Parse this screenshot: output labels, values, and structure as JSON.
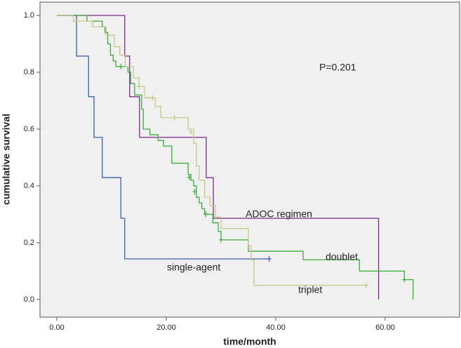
{
  "chart_data": {
    "type": "km",
    "xlabel": "time/month",
    "ylabel": "cumulative survival",
    "annotation": "P=0.201",
    "xlim": [
      -3.08,
      73.6
    ],
    "ylim": [
      -0.062,
      1.047
    ],
    "xticks": [
      {
        "value": 0,
        "label": "0.00"
      },
      {
        "value": 20,
        "label": "20.00"
      },
      {
        "value": 40,
        "label": "40.00"
      },
      {
        "value": 60,
        "label": "60.00"
      }
    ],
    "yticks": [
      {
        "value": 0,
        "label": "0.0"
      },
      {
        "value": 0.2,
        "label": "0.2"
      },
      {
        "value": 0.4,
        "label": "0.4"
      },
      {
        "value": 0.6,
        "label": "0.6"
      },
      {
        "value": 0.8,
        "label": "0.8"
      },
      {
        "value": 1,
        "label": "1.0"
      }
    ],
    "series": [
      {
        "name": "single-agent",
        "color": "#3a5fad",
        "x": [
          0,
          3.6,
          5.8,
          6.8,
          8.3,
          11.7,
          12.4,
          38.8
        ],
        "values": [
          1,
          0.857,
          0.714,
          0.571,
          0.429,
          0.286,
          0.143,
          0.143
        ],
        "censor_x": [
          38.8
        ],
        "censor_y": [
          0.143
        ]
      },
      {
        "name": "ADOC regimen",
        "color": "#7b2a8a",
        "x": [
          0,
          12.4,
          13.3,
          15.1,
          27.3,
          28.6,
          58.8
        ],
        "values": [
          1,
          0.857,
          0.714,
          0.571,
          0.429,
          0.286,
          0
        ],
        "censor_x": [],
        "censor_y": []
      },
      {
        "name": "doublet",
        "color": "#3aab3a",
        "x": [
          0,
          5.5,
          8.3,
          8.8,
          9.3,
          9.8,
          10.3,
          10.8,
          13.0,
          13.5,
          14.2,
          15.5,
          15.8,
          17.0,
          18.5,
          19.5,
          21,
          24,
          24.5,
          25,
          25.5,
          26,
          26.5,
          27,
          28.5,
          29.5,
          30,
          35,
          45,
          55.3,
          63.5,
          65.1
        ],
        "values": [
          1,
          0.98,
          0.96,
          0.94,
          0.9,
          0.86,
          0.84,
          0.82,
          0.8,
          0.76,
          0.72,
          0.67,
          0.6,
          0.58,
          0.56,
          0.54,
          0.48,
          0.44,
          0.42,
          0.4,
          0.36,
          0.34,
          0.32,
          0.3,
          0.27,
          0.24,
          0.21,
          0.17,
          0.14,
          0.1,
          0.07,
          0
        ],
        "censor_x": [
          11.7,
          24.2,
          25.2,
          27.2,
          30,
          63.5
        ],
        "censor_y": [
          0.82,
          0.43,
          0.38,
          0.3,
          0.21,
          0.07
        ]
      },
      {
        "name": "triplet",
        "color": "#c8c88a",
        "x": [
          0,
          3,
          6.5,
          9,
          10.5,
          11.5,
          12.5,
          14,
          15,
          16,
          18,
          19,
          24,
          25,
          25.5,
          26,
          27,
          28,
          29,
          30,
          35,
          35.5,
          36,
          56.5
        ],
        "values": [
          1,
          0.98,
          0.96,
          0.93,
          0.89,
          0.86,
          0.82,
          0.78,
          0.75,
          0.71,
          0.68,
          0.64,
          0.6,
          0.55,
          0.47,
          0.42,
          0.36,
          0.33,
          0.29,
          0.25,
          0.19,
          0.14,
          0.05,
          0.05
        ],
        "censor_x": [
          3.5,
          15,
          17.5,
          21.5,
          24.5,
          29,
          56.5
        ],
        "censor_y": [
          0.98,
          0.75,
          0.71,
          0.64,
          0.59,
          0.29,
          0.05
        ]
      }
    ]
  }
}
